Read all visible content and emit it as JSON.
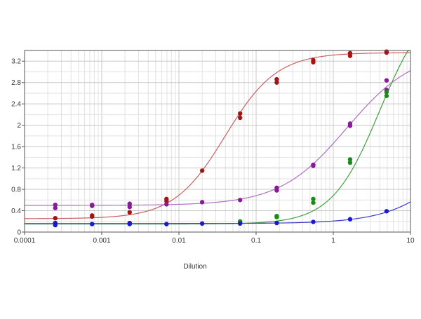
{
  "chart_data": {
    "type": "scatter",
    "title": "",
    "xlabel": "Dilution",
    "ylabel": "",
    "x_scale": "log",
    "xlim": [
      0.0001,
      10
    ],
    "ylim": [
      0,
      3.4
    ],
    "grid": true,
    "x_ticks": [
      {
        "value": 0.0001,
        "label": "0.0001"
      },
      {
        "value": 0.001,
        "label": "0.001"
      },
      {
        "value": 0.01,
        "label": "0.01"
      },
      {
        "value": 0.1,
        "label": "0.1"
      },
      {
        "value": 1,
        "label": "1"
      },
      {
        "value": 10,
        "label": "10"
      }
    ],
    "y_ticks": [
      {
        "value": 0,
        "label": "0"
      },
      {
        "value": 0.4,
        "label": "0.4"
      },
      {
        "value": 0.8,
        "label": "0.8"
      },
      {
        "value": 1.2,
        "label": "1.2"
      },
      {
        "value": 1.6,
        "label": "1.6"
      },
      {
        "value": 2,
        "label": "2"
      },
      {
        "value": 2.4,
        "label": "2.4"
      },
      {
        "value": 2.8,
        "label": "2.8"
      },
      {
        "value": 3.2,
        "label": "3.2"
      }
    ],
    "series": [
      {
        "color": "#a31414",
        "line_color": "#c86060",
        "fit": {
          "bottom": 0.25,
          "top": 3.36,
          "ec50": 0.04,
          "hill": 1.3
        },
        "points": [
          {
            "x": 0.00025,
            "y": 0.26
          },
          {
            "x": 0.00075,
            "y": 0.29
          },
          {
            "x": 0.00075,
            "y": 0.31
          },
          {
            "x": 0.0023,
            "y": 0.37
          },
          {
            "x": 0.0069,
            "y": 0.58
          },
          {
            "x": 0.0069,
            "y": 0.62
          },
          {
            "x": 0.02,
            "y": 1.15
          },
          {
            "x": 0.062,
            "y": 2.14
          },
          {
            "x": 0.062,
            "y": 2.22
          },
          {
            "x": 0.185,
            "y": 2.8
          },
          {
            "x": 0.185,
            "y": 2.86
          },
          {
            "x": 0.55,
            "y": 3.18
          },
          {
            "x": 0.55,
            "y": 3.22
          },
          {
            "x": 1.65,
            "y": 3.3
          },
          {
            "x": 1.65,
            "y": 3.35
          },
          {
            "x": 4.9,
            "y": 3.36
          },
          {
            "x": 4.9,
            "y": 3.38
          }
        ]
      },
      {
        "color": "#8a1a9a",
        "line_color": "#b070c0",
        "fit": {
          "bottom": 0.5,
          "top": 3.4,
          "ec50": 1.5,
          "hill": 1.0
        },
        "points": [
          {
            "x": 0.00025,
            "y": 0.45
          },
          {
            "x": 0.00025,
            "y": 0.51
          },
          {
            "x": 0.00075,
            "y": 0.49
          },
          {
            "x": 0.00075,
            "y": 0.51
          },
          {
            "x": 0.0023,
            "y": 0.47
          },
          {
            "x": 0.0023,
            "y": 0.53
          },
          {
            "x": 0.0069,
            "y": 0.52
          },
          {
            "x": 0.02,
            "y": 0.56
          },
          {
            "x": 0.062,
            "y": 0.6
          },
          {
            "x": 0.185,
            "y": 0.78
          },
          {
            "x": 0.185,
            "y": 0.83
          },
          {
            "x": 0.55,
            "y": 1.24
          },
          {
            "x": 0.55,
            "y": 1.26
          },
          {
            "x": 1.65,
            "y": 1.99
          },
          {
            "x": 1.65,
            "y": 2.03
          },
          {
            "x": 4.9,
            "y": 2.66
          },
          {
            "x": 4.9,
            "y": 2.84
          }
        ]
      },
      {
        "color": "#1a8a1a",
        "line_color": "#40a040",
        "fit": {
          "bottom": 0.15,
          "top": 4.4,
          "ec50": 4.0,
          "hill": 1.4
        },
        "points": [
          {
            "x": 0.062,
            "y": 0.18
          },
          {
            "x": 0.062,
            "y": 0.2
          },
          {
            "x": 0.185,
            "y": 0.28
          },
          {
            "x": 0.185,
            "y": 0.3
          },
          {
            "x": 0.55,
            "y": 0.55
          },
          {
            "x": 0.55,
            "y": 0.62
          },
          {
            "x": 1.65,
            "y": 1.3
          },
          {
            "x": 1.65,
            "y": 1.36
          },
          {
            "x": 4.9,
            "y": 2.55
          },
          {
            "x": 4.9,
            "y": 2.62
          }
        ]
      },
      {
        "color": "#1a1acc",
        "line_color": "#3a3acc",
        "fit": {
          "bottom": 0.16,
          "top": 3.0,
          "ec50": 60,
          "hill": 1.0
        },
        "points": [
          {
            "x": 0.00025,
            "y": 0.13
          },
          {
            "x": 0.00025,
            "y": 0.17
          },
          {
            "x": 0.00075,
            "y": 0.15
          },
          {
            "x": 0.0023,
            "y": 0.15
          },
          {
            "x": 0.0023,
            "y": 0.17
          },
          {
            "x": 0.0069,
            "y": 0.15
          },
          {
            "x": 0.02,
            "y": 0.16
          },
          {
            "x": 0.062,
            "y": 0.16
          },
          {
            "x": 0.185,
            "y": 0.17
          },
          {
            "x": 0.55,
            "y": 0.19
          },
          {
            "x": 1.65,
            "y": 0.24
          },
          {
            "x": 4.9,
            "y": 0.39
          }
        ]
      }
    ]
  }
}
